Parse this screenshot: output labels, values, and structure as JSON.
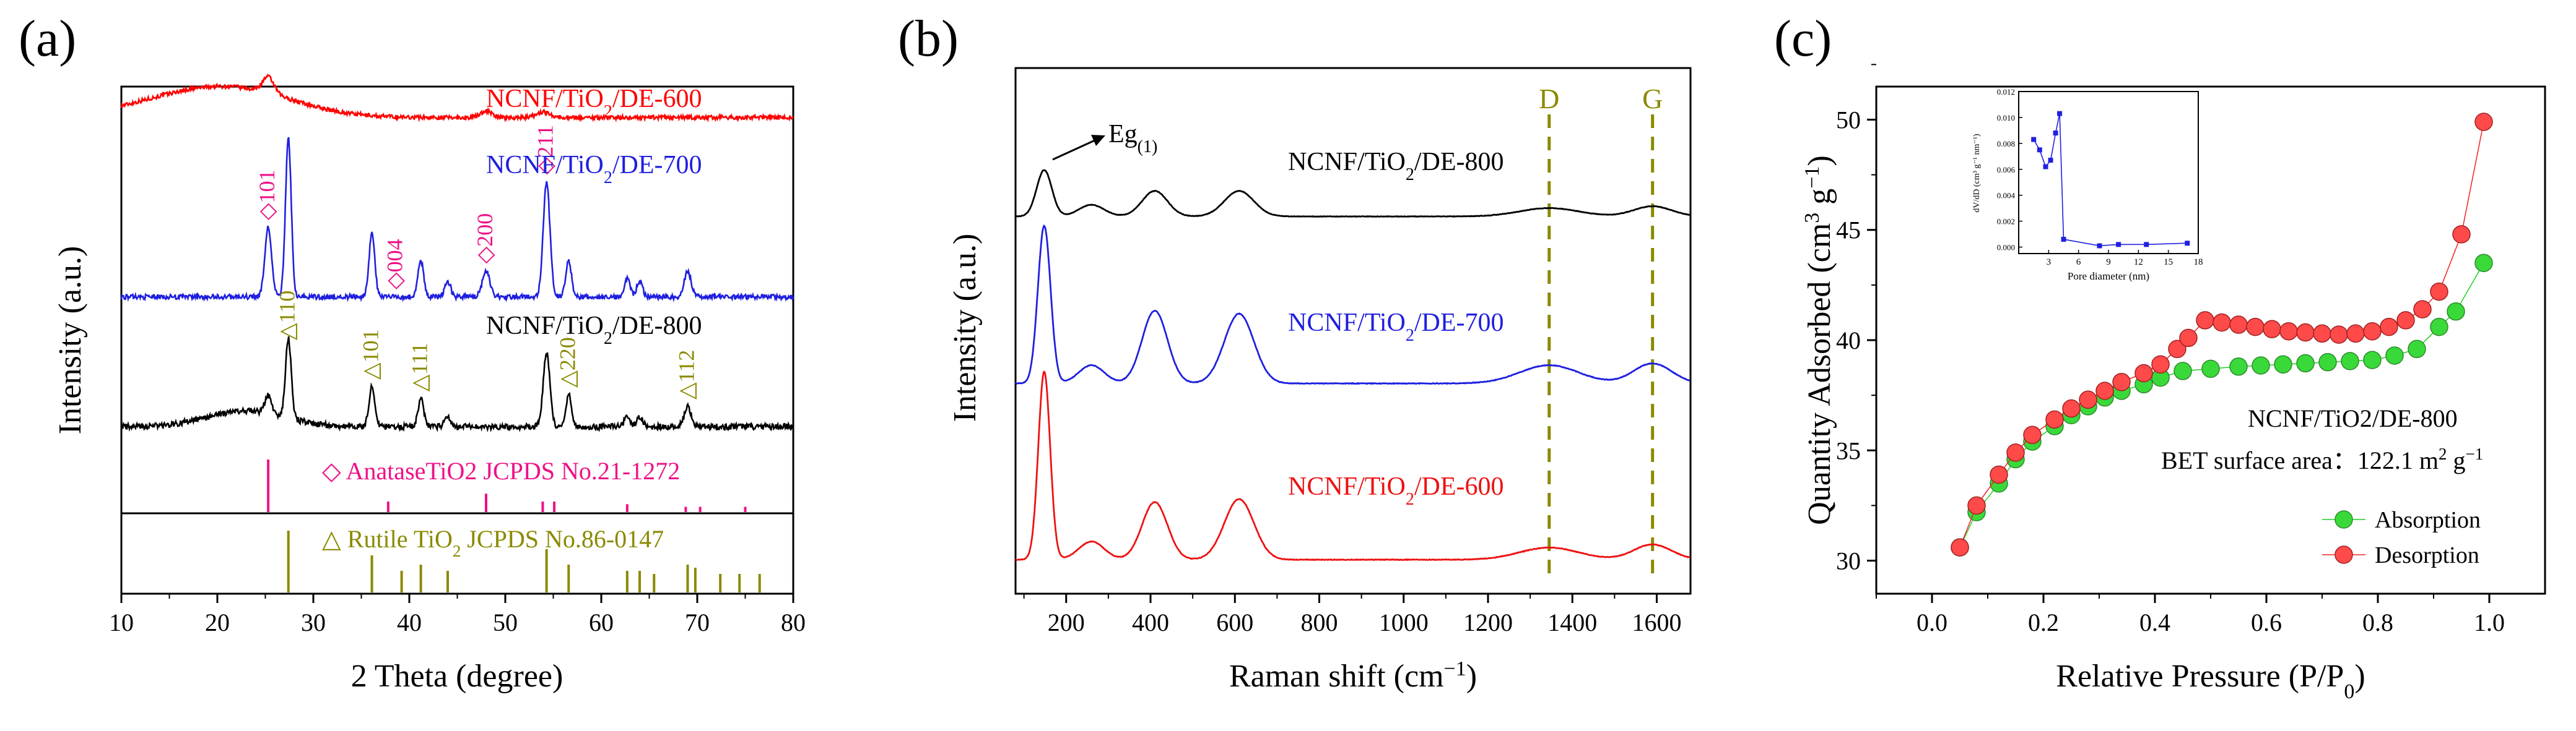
{
  "panels": [
    {
      "label": "(a)",
      "xlabel": "2 Theta (degree)",
      "ylabel": "Intensity (a.u.)",
      "xlim": [
        10,
        80
      ],
      "xticks": [
        10,
        20,
        30,
        40,
        50,
        60,
        70,
        80
      ],
      "spectra": [
        {
          "name": "NCNF/TiO2/DE-600",
          "label_parts": [
            "NCNF/TiO",
            "2",
            "/DE-600"
          ],
          "color": "#ff0000",
          "peaks": [
            [
              25.3,
              1.0,
              0.6
            ],
            [
              48.0,
              0.4,
              0.6
            ],
            [
              54.0,
              0.35,
              0.7
            ]
          ],
          "humps": [
            [
              22.5,
              1.5,
              6
            ],
            [
              15.0,
              0.8,
              6
            ]
          ],
          "noise": 0.25
        },
        {
          "name": "NCNF/TiO2/DE-700",
          "label_parts": [
            "NCNF/TiO",
            "2",
            "/DE-700"
          ],
          "color": "#1f1fe0",
          "peaks": [
            [
              25.3,
              3.5,
              0.35
            ],
            [
              27.4,
              8.0,
              0.3
            ],
            [
              36.1,
              3.2,
              0.3
            ],
            [
              41.2,
              1.8,
              0.3
            ],
            [
              44.0,
              0.8,
              0.3
            ],
            [
              48.0,
              1.3,
              0.4
            ],
            [
              54.3,
              5.8,
              0.35
            ],
            [
              56.6,
              1.8,
              0.3
            ],
            [
              62.7,
              0.9,
              0.3
            ],
            [
              64.0,
              0.8,
              0.3
            ],
            [
              69.0,
              1.3,
              0.35
            ]
          ],
          "humps": [],
          "noise": 0.25
        },
        {
          "name": "NCNF/TiO2/DE-800",
          "label_parts": [
            "NCNF/TiO",
            "2",
            "/DE-800"
          ],
          "color": "#000000",
          "peaks": [
            [
              25.3,
              0.9,
              0.35
            ],
            [
              27.4,
              4.0,
              0.3
            ],
            [
              36.1,
              2.0,
              0.3
            ],
            [
              41.2,
              1.4,
              0.3
            ],
            [
              44.0,
              0.5,
              0.3
            ],
            [
              54.3,
              3.7,
              0.35
            ],
            [
              56.6,
              1.6,
              0.3
            ],
            [
              62.7,
              0.5,
              0.3
            ],
            [
              64.0,
              0.5,
              0.3
            ],
            [
              69.0,
              1.0,
              0.35
            ]
          ],
          "humps": [
            [
              23.0,
              0.8,
              4
            ]
          ],
          "noise": 0.3
        }
      ],
      "peak_annotations": [
        {
          "text": "◇101",
          "x": 25.3,
          "series": "NCNF/TiO2/DE-700",
          "color": "#ee1187"
        },
        {
          "text": "◇004",
          "x": 38.6,
          "series": "NCNF/TiO2/DE-700",
          "color": "#ee1187"
        },
        {
          "text": "◇200",
          "x": 48.0,
          "series": "NCNF/TiO2/DE-700",
          "color": "#ee1187"
        },
        {
          "text": "◇211",
          "x": 54.3,
          "series": "NCNF/TiO2/DE-700",
          "color": "#ee1187"
        },
        {
          "text": "△110",
          "x": 27.4,
          "series": "NCNF/TiO2/DE-800",
          "color": "#8a8a00"
        },
        {
          "text": "△101",
          "x": 36.1,
          "series": "NCNF/TiO2/DE-800",
          "color": "#8a8a00"
        },
        {
          "text": "△111",
          "x": 41.2,
          "series": "NCNF/TiO2/DE-800",
          "color": "#8a8a00"
        },
        {
          "text": "△220",
          "x": 56.6,
          "series": "NCNF/TiO2/DE-800",
          "color": "#8a8a00"
        },
        {
          "text": "△112",
          "x": 69.0,
          "series": "NCNF/TiO2/DE-800",
          "color": "#8a8a00"
        }
      ],
      "reference_anatase": {
        "label": "◇ AnataseTiO2 JCPDS No.21-1272",
        "color": "#ee1187",
        "lines": [
          [
            25.3,
            1.0
          ],
          [
            37.8,
            0.2
          ],
          [
            48.0,
            0.35
          ],
          [
            53.9,
            0.2
          ],
          [
            55.1,
            0.2
          ],
          [
            62.7,
            0.15
          ],
          [
            68.8,
            0.1
          ],
          [
            70.3,
            0.1
          ],
          [
            75.0,
            0.1
          ]
        ]
      },
      "reference_rutile": {
        "label_parts": [
          "△ Rutile TiO",
          "2",
          " JCPDS No.86-0147"
        ],
        "color": "#8a8a00",
        "lines": [
          [
            27.4,
            1.0
          ],
          [
            36.1,
            0.6
          ],
          [
            39.2,
            0.35
          ],
          [
            41.2,
            0.45
          ],
          [
            44.0,
            0.35
          ],
          [
            54.3,
            0.7
          ],
          [
            56.6,
            0.45
          ],
          [
            62.7,
            0.35
          ],
          [
            64.0,
            0.35
          ],
          [
            65.5,
            0.3
          ],
          [
            69.0,
            0.45
          ],
          [
            69.8,
            0.4
          ],
          [
            72.4,
            0.3
          ],
          [
            74.4,
            0.3
          ],
          [
            76.5,
            0.3
          ]
        ]
      }
    },
    {
      "label": "(b)",
      "xlabel": "Raman shift (cm",
      "xlabel_sup": "−1",
      "xlabel_close": ")",
      "ylabel": "Intensity (a.u.)",
      "xlim": [
        80,
        1680
      ],
      "xticks": [
        200,
        400,
        600,
        800,
        1000,
        1200,
        1400,
        1600
      ],
      "d_band": {
        "label": "D",
        "x": 1345,
        "color": "#8a8a00"
      },
      "g_band": {
        "label": "G",
        "x": 1590,
        "color": "#8a8a00"
      },
      "eg_annotation": {
        "text": "Eg",
        "sub": "(1)",
        "x": 148
      },
      "spectra": [
        {
          "name": "NCNF/TiO2/DE-800",
          "label_parts": [
            "NCNF/TiO",
            "2",
            "/DE-800"
          ],
          "color": "#000000",
          "peaks": [
            [
              148,
              1.0,
              18
            ],
            [
              260,
              0.25,
              30
            ],
            [
              410,
              0.55,
              30
            ],
            [
              610,
              0.55,
              35
            ],
            [
              1345,
              0.18,
              70
            ],
            [
              1590,
              0.22,
              45
            ]
          ],
          "noise": 0.01
        },
        {
          "name": "NCNF/TiO2/DE-700",
          "label_parts": [
            "NCNF/TiO",
            "2",
            "/DE-700"
          ],
          "color": "#1f1fe0",
          "peaks": [
            [
              148,
              2.6,
              15
            ],
            [
              260,
              0.3,
              30
            ],
            [
              410,
              1.2,
              30
            ],
            [
              610,
              1.15,
              35
            ],
            [
              1345,
              0.3,
              70
            ],
            [
              1590,
              0.33,
              45
            ]
          ],
          "noise": 0.01
        },
        {
          "name": "NCNF/TiO2/DE-600",
          "label_parts": [
            "NCNF/TiO",
            "2",
            "/DE-600"
          ],
          "color": "#ee1111",
          "peaks": [
            [
              148,
              3.1,
              14
            ],
            [
              260,
              0.3,
              30
            ],
            [
              410,
              0.95,
              30
            ],
            [
              610,
              1.0,
              35
            ],
            [
              1345,
              0.2,
              70
            ],
            [
              1590,
              0.25,
              45
            ]
          ],
          "noise": 0.01
        }
      ]
    },
    {
      "label": "(c)",
      "xlabel": "Relative Pressure (P/P",
      "xlabel_sub": "0",
      "xlabel_close": ")",
      "ylabel": "Quantity Adsorbed (cm",
      "ylabel_sup1": "3",
      "ylabel_mid": " g",
      "ylabel_sup2": "−1",
      "ylabel_close": ")",
      "xlim": [
        -0.1,
        1.1
      ],
      "ylim": [
        28.5,
        51.5
      ],
      "xticks": [
        0.0,
        0.2,
        0.4,
        0.6,
        0.8,
        1.0
      ],
      "xtick_labels": [
        "0.0",
        "0.2",
        "0.4",
        "0.6",
        "0.8",
        "1.0"
      ],
      "yticks": [
        30,
        35,
        40,
        45,
        50
      ],
      "sample_label": "NCNF/TiO2/DE-800",
      "bet_label": "BET surface area：122.1 m",
      "bet_sup": "2",
      "bet_unit": " g",
      "bet_sup2": "−1",
      "series": [
        {
          "name": "Absorption",
          "color": "#22cc22",
          "x": [
            0.05,
            0.08,
            0.12,
            0.15,
            0.18,
            0.22,
            0.25,
            0.28,
            0.31,
            0.34,
            0.38,
            0.41,
            0.45,
            0.5,
            0.55,
            0.59,
            0.63,
            0.67,
            0.71,
            0.75,
            0.79,
            0.83,
            0.87,
            0.91,
            0.94,
            0.99
          ],
          "y": [
            30.6,
            32.2,
            33.5,
            34.6,
            35.4,
            36.1,
            36.6,
            37.0,
            37.4,
            37.7,
            38.0,
            38.3,
            38.6,
            38.7,
            38.8,
            38.85,
            38.9,
            38.95,
            39.0,
            39.05,
            39.1,
            39.3,
            39.6,
            40.6,
            41.3,
            43.5
          ]
        },
        {
          "name": "Desorption",
          "color": "#ee2222",
          "x": [
            0.05,
            0.08,
            0.12,
            0.15,
            0.18,
            0.22,
            0.25,
            0.28,
            0.31,
            0.34,
            0.38,
            0.41,
            0.44,
            0.46,
            0.49,
            0.52,
            0.55,
            0.58,
            0.61,
            0.64,
            0.67,
            0.7,
            0.73,
            0.76,
            0.79,
            0.82,
            0.85,
            0.88,
            0.91,
            0.95,
            0.99
          ],
          "y": [
            30.6,
            32.5,
            33.9,
            34.9,
            35.7,
            36.4,
            36.9,
            37.3,
            37.7,
            38.1,
            38.5,
            38.9,
            39.6,
            40.1,
            40.9,
            40.8,
            40.7,
            40.6,
            40.5,
            40.4,
            40.35,
            40.3,
            40.25,
            40.3,
            40.4,
            40.6,
            40.9,
            41.4,
            42.2,
            44.8,
            49.9
          ]
        }
      ],
      "inset": {
        "xlabel": "Pore diameter (nm)",
        "ylabel": "dV/dD (cm³ g⁻¹ nm⁻¹)",
        "xticks": [
          3,
          6,
          9,
          12,
          15,
          18
        ],
        "yticks": [
          0.0,
          0.002,
          0.004,
          0.006,
          0.008,
          0.01,
          0.012
        ],
        "ytick_labels": [
          "0.000",
          "0.002",
          "0.004",
          "0.006",
          "0.008",
          "0.010",
          "0.012"
        ],
        "xlim": [
          0,
          18
        ],
        "ylim": [
          -0.0005,
          0.012
        ],
        "x": [
          1.5,
          2.1,
          2.7,
          3.2,
          3.7,
          4.1,
          4.5,
          8.1,
          10.0,
          12.8,
          16.9
        ],
        "y": [
          0.0083,
          0.0075,
          0.0062,
          0.0067,
          0.0088,
          0.0103,
          0.0006,
          0.0001,
          0.0002,
          0.0002,
          0.0003
        ],
        "color": "#2020e0"
      }
    }
  ]
}
